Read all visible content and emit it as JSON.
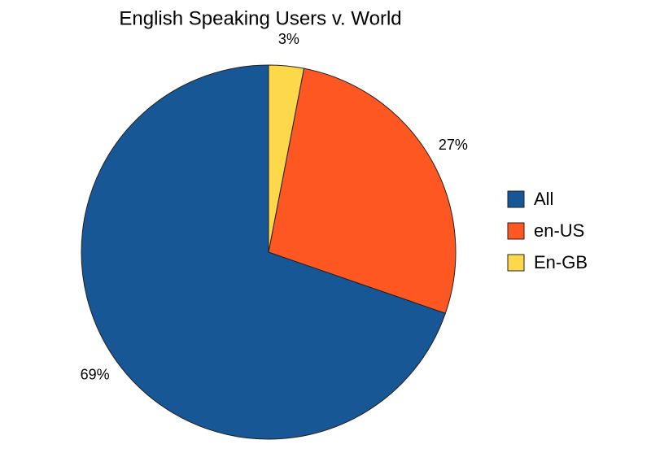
{
  "chart_data": {
    "type": "pie",
    "title": "English Speaking Users v. World",
    "categories": [
      "All",
      "en-US",
      "En-GB"
    ],
    "values": [
      69,
      27,
      3
    ],
    "value_labels": [
      "69%",
      "27%",
      "3%"
    ],
    "colors": [
      "#175795",
      "#fe5722",
      "#fdd84a"
    ],
    "legend": "right"
  }
}
